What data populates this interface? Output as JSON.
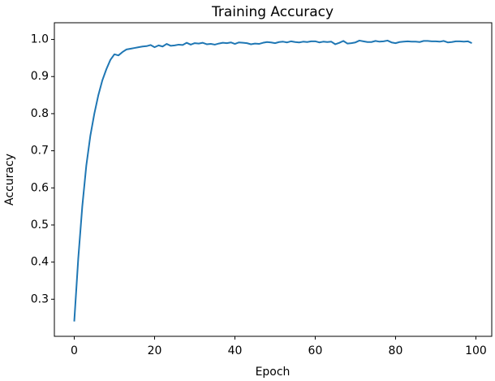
{
  "chart_data": {
    "type": "line",
    "title": "Training Accuracy",
    "x_label": "Epoch",
    "y_label": "Accuracy",
    "x": [
      0,
      1,
      2,
      3,
      4,
      5,
      6,
      7,
      8,
      9,
      10,
      11,
      12,
      13,
      14,
      15,
      16,
      17,
      18,
      19,
      20,
      21,
      22,
      23,
      24,
      25,
      26,
      27,
      28,
      29,
      30,
      31,
      32,
      33,
      34,
      35,
      36,
      37,
      38,
      39,
      40,
      41,
      42,
      43,
      44,
      45,
      46,
      47,
      48,
      49,
      50,
      51,
      52,
      53,
      54,
      55,
      56,
      57,
      58,
      59,
      60,
      61,
      62,
      63,
      64,
      65,
      66,
      67,
      68,
      69,
      70,
      71,
      72,
      73,
      74,
      75,
      76,
      77,
      78,
      79,
      80,
      81,
      82,
      83,
      84,
      85,
      86,
      87,
      88,
      89,
      90,
      91,
      92,
      93,
      94,
      95,
      96,
      97,
      98,
      99
    ],
    "series": [
      {
        "color": "#1f77b4",
        "values": [
          0.24,
          0.41,
          0.55,
          0.66,
          0.74,
          0.8,
          0.85,
          0.89,
          0.92,
          0.945,
          0.96,
          0.957,
          0.966,
          0.973,
          0.975,
          0.977,
          0.979,
          0.981,
          0.982,
          0.985,
          0.979,
          0.984,
          0.981,
          0.988,
          0.983,
          0.984,
          0.986,
          0.985,
          0.991,
          0.986,
          0.99,
          0.989,
          0.991,
          0.987,
          0.988,
          0.986,
          0.989,
          0.991,
          0.99,
          0.992,
          0.988,
          0.992,
          0.991,
          0.99,
          0.987,
          0.989,
          0.988,
          0.991,
          0.993,
          0.992,
          0.99,
          0.993,
          0.994,
          0.992,
          0.995,
          0.993,
          0.992,
          0.994,
          0.993,
          0.995,
          0.995,
          0.992,
          0.994,
          0.993,
          0.994,
          0.987,
          0.991,
          0.996,
          0.989,
          0.99,
          0.992,
          0.997,
          0.995,
          0.993,
          0.993,
          0.996,
          0.994,
          0.995,
          0.997,
          0.992,
          0.99,
          0.993,
          0.994,
          0.995,
          0.994,
          0.994,
          0.993,
          0.996,
          0.996,
          0.995,
          0.995,
          0.994,
          0.996,
          0.992,
          0.993,
          0.995,
          0.995,
          0.994,
          0.995,
          0.99
        ]
      }
    ],
    "xlim": [
      -4.95,
      103.95
    ],
    "ylim": [
      0.2,
      1.045
    ],
    "xticks": [
      0,
      20,
      40,
      60,
      80,
      100
    ],
    "yticks": [
      0.3,
      0.4,
      0.5,
      0.6,
      0.7,
      0.8,
      0.9,
      {
        "value": 1,
        "label": "1.0"
      }
    ],
    "grid": false
  }
}
